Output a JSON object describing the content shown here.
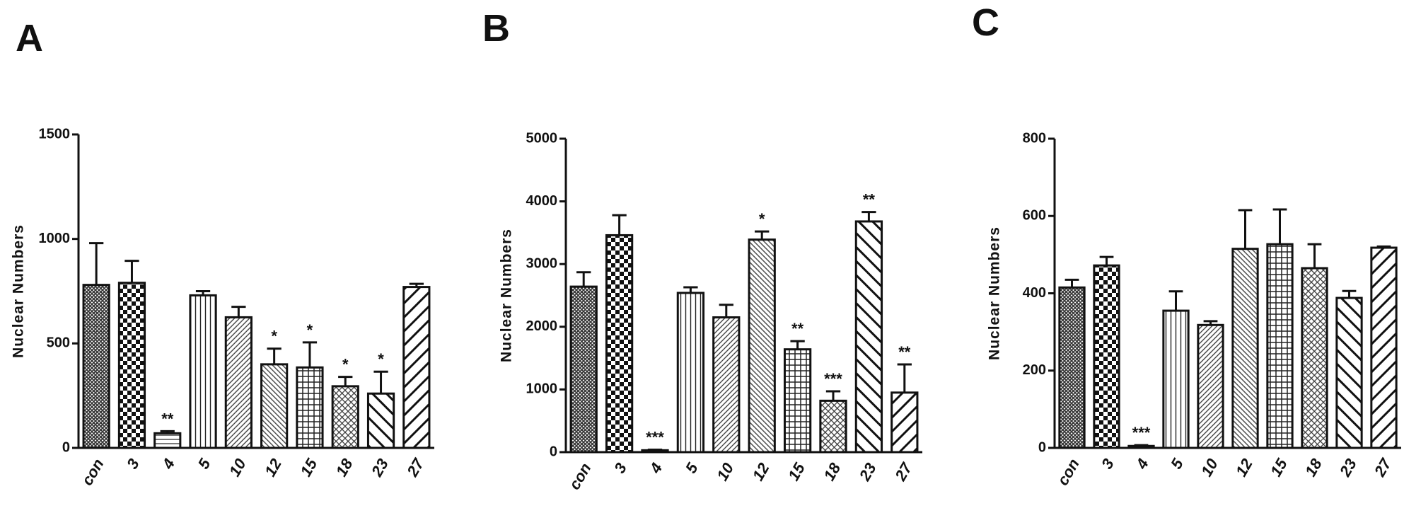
{
  "chart_data": [
    {
      "type": "bar",
      "panel": "A",
      "ylabel": "Nuclear Numbers",
      "categories": [
        "con",
        "3",
        "4",
        "5",
        "10",
        "12",
        "15",
        "18",
        "23",
        "27"
      ],
      "values": [
        780,
        790,
        70,
        730,
        625,
        400,
        385,
        295,
        260,
        770
      ],
      "errors": [
        200,
        105,
        10,
        20,
        50,
        75,
        120,
        45,
        105,
        15
      ],
      "annotations": [
        null,
        null,
        "**",
        null,
        null,
        "*",
        "*",
        "*",
        "*",
        null
      ],
      "color": "#111111",
      "ylim": [
        0,
        1500
      ],
      "yticks": [
        0,
        500,
        1000,
        1500
      ]
    },
    {
      "type": "bar",
      "panel": "B",
      "ylabel": "Nuclear Numbers",
      "categories": [
        "con",
        "3",
        "4",
        "5",
        "10",
        "12",
        "15",
        "18",
        "23",
        "27"
      ],
      "values": [
        2640,
        3460,
        30,
        2540,
        2150,
        3390,
        1640,
        820,
        3680,
        950
      ],
      "errors": [
        230,
        320,
        10,
        90,
        200,
        130,
        130,
        150,
        150,
        450
      ],
      "annotations": [
        null,
        null,
        "***",
        null,
        null,
        "*",
        "**",
        "***",
        "**",
        "**"
      ],
      "color": "#111111",
      "ylim": [
        0,
        5000
      ],
      "yticks": [
        0,
        1000,
        2000,
        3000,
        4000,
        5000
      ]
    },
    {
      "type": "bar",
      "panel": "C",
      "ylabel": "Nuclear Numbers",
      "categories": [
        "con",
        "3",
        "4",
        "5",
        "10",
        "12",
        "15",
        "18",
        "23",
        "27"
      ],
      "values": [
        415,
        472,
        5,
        355,
        318,
        515,
        527,
        465,
        388,
        518
      ],
      "errors": [
        20,
        22,
        2,
        50,
        10,
        100,
        90,
        62,
        18,
        3
      ],
      "annotations": [
        null,
        null,
        "***",
        null,
        null,
        null,
        null,
        null,
        null,
        null
      ],
      "color": "#111111",
      "ylim": [
        0,
        800
      ],
      "yticks": [
        0,
        200,
        400,
        600,
        800
      ]
    }
  ]
}
